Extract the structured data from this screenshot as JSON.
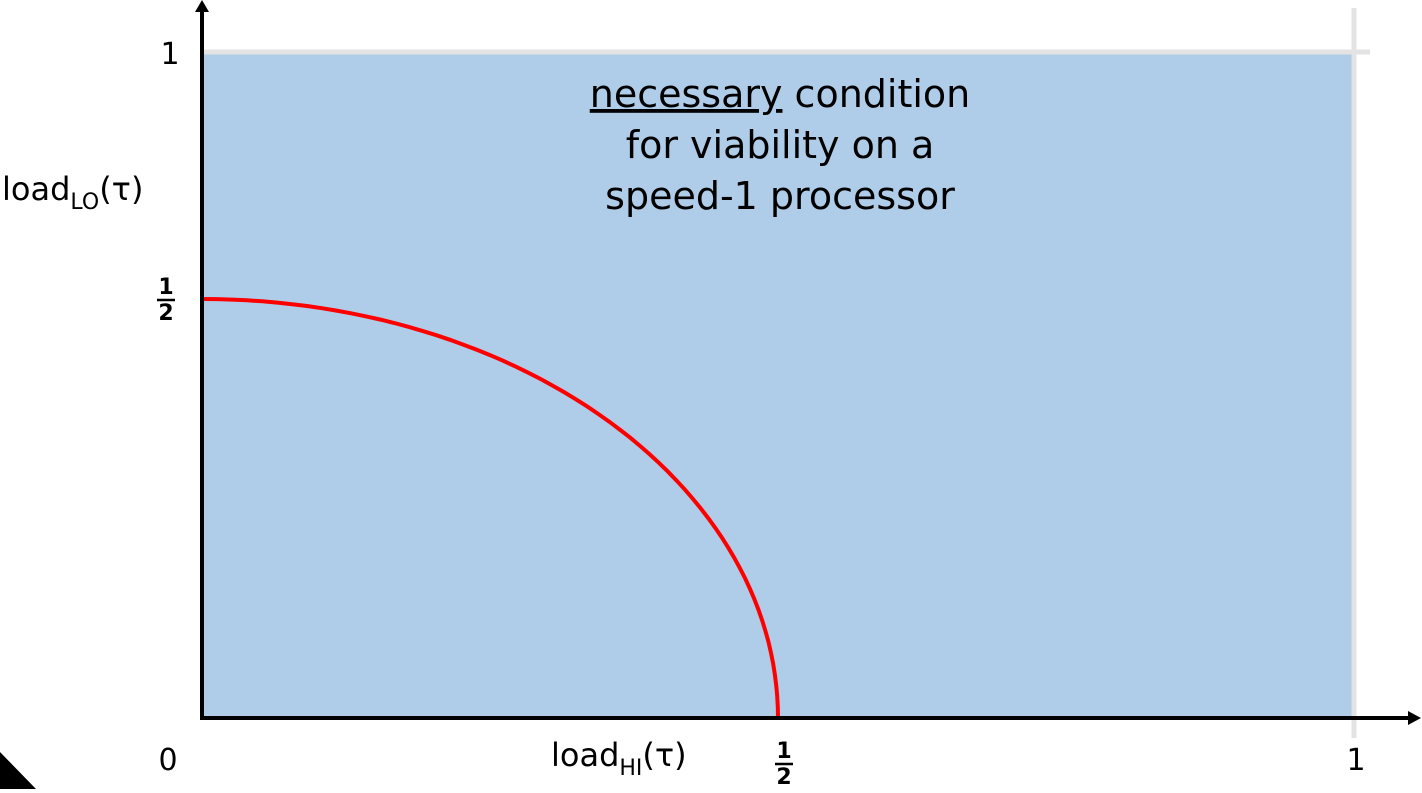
{
  "chart_data": {
    "type": "area",
    "xlabel": {
      "base": "load",
      "sub": "HI",
      "suffix": "(τ)"
    },
    "ylabel": {
      "base": "load",
      "sub": "LO",
      "suffix": "(τ)"
    },
    "xlim": [
      0,
      1
    ],
    "ylim": [
      0,
      1
    ],
    "x_ticks": [
      {
        "value": 0,
        "label": "0"
      },
      {
        "value": 0.5,
        "num": "1",
        "den": "2"
      },
      {
        "value": 1,
        "label": "1"
      }
    ],
    "y_ticks": [
      {
        "value": 0.5,
        "num": "1",
        "den": "2"
      },
      {
        "value": 1,
        "label": "1"
      }
    ],
    "region": {
      "x": [
        0,
        1
      ],
      "y": [
        0,
        1
      ],
      "color": "#afcde8",
      "annotation": {
        "line1_underlined": "necessary",
        "line1_rest": " condition",
        "line2": "for viability on  a",
        "line3": "speed-1 processor"
      }
    },
    "series": [
      {
        "type": "curve",
        "color": "#ff0000",
        "x": [
          0,
          0.1,
          0.2,
          0.3,
          0.35,
          0.4,
          0.45,
          0.48,
          0.5
        ],
        "y": [
          0.5,
          0.489,
          0.458,
          0.4,
          0.357,
          0.3,
          0.218,
          0.14,
          0
        ]
      }
    ],
    "grid": false
  }
}
